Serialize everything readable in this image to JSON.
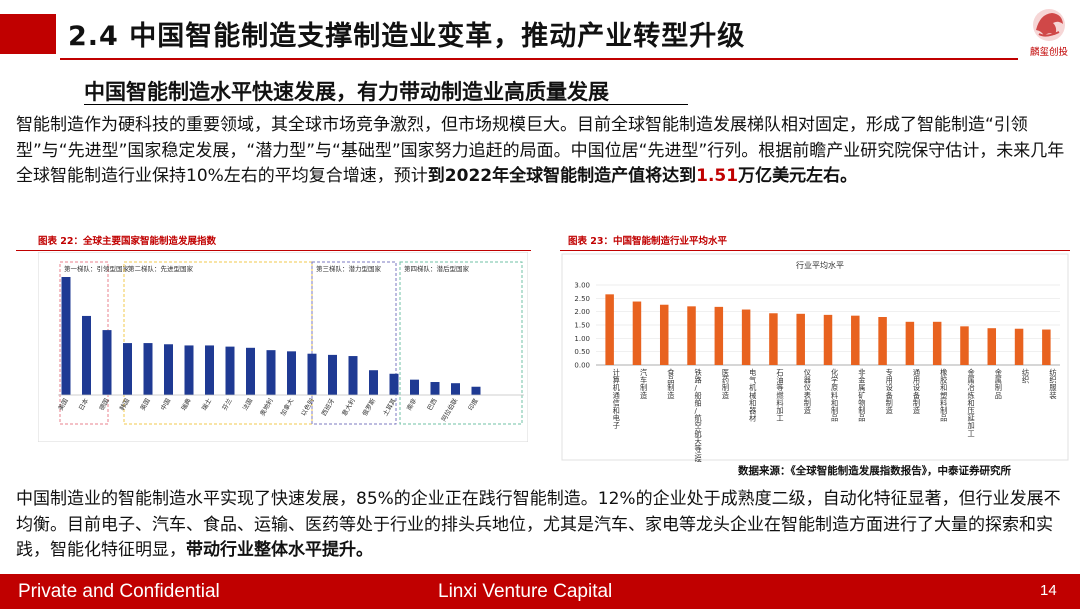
{
  "header": {
    "title": "2.4 中国智能制造支撑制造业变革，推动产业转型升级",
    "logo_text": "麟玺创投"
  },
  "subtitle": "中国智能制造水平快速发展，有力带动制造业高质量发展",
  "paragraph1": {
    "text": "智能制造作为硬科技的重要领域，其全球市场竞争激烈，但市场规模巨大。目前全球智能制造发展梯队相对固定，形成了智能制造“引领型”与“先进型”国家稳定发展，“潜力型”与“基础型”国家努力追赶的局面。中国位居“先进型”行列。根据前瞻产业研究院保守估计，未来几年全球智能制造行业保持10%左右的平均复合增速，预计",
    "bold_text": "到2022年全球智能制造产值将达到",
    "highlight": "1.51",
    "bold_tail": "万亿美元左右。"
  },
  "figure22": {
    "title": "图表 22：全球主要国家智能制造发展指数",
    "chart_data": {
      "type": "bar",
      "groups": [
        {
          "label": "第一梯队：引领型国家",
          "color": "#e8828c",
          "categories": [
            "美国",
            "日本",
            "德国"
          ]
        },
        {
          "label": "第二梯队：先进型国家",
          "color": "#f2c94c",
          "categories": [
            "韩国",
            "英国",
            "中国",
            "瑞典",
            "瑞士",
            "芬兰",
            "法国",
            "奥地利",
            "加拿大"
          ]
        },
        {
          "label": "第三梯队：潜力型国家",
          "color": "#7b79c2",
          "categories": [
            "以色列",
            "西班牙",
            "意大利"
          ]
        },
        {
          "label": "第四梯队：潜后型国家",
          "color": "#6fc2a4",
          "categories": [
            "俄罗斯",
            "土耳其",
            "南非",
            "巴西",
            "阿拉伯联",
            "印度"
          ]
        }
      ],
      "categories": [
        "美国",
        "日本",
        "德国",
        "韩国",
        "英国",
        "中国",
        "瑞典",
        "瑞士",
        "芬兰",
        "法国",
        "奥地利",
        "加拿大",
        "以色列",
        "西班牙",
        "意大利",
        "俄罗斯",
        "土耳其",
        "南非",
        "巴西",
        "阿拉伯联",
        "印度"
      ],
      "values": [
        100,
        67,
        55,
        44,
        44,
        43,
        42,
        42,
        41,
        40,
        38,
        37,
        35,
        34,
        33,
        21,
        18,
        13,
        11,
        10,
        7
      ],
      "bar_color": "#1f3a93"
    }
  },
  "figure23": {
    "title": "图表 23：中国智能制造行业平均水平",
    "chart_data": {
      "type": "bar",
      "title": "行业平均水平",
      "ylim": [
        0,
        3.0
      ],
      "yticks": [
        "0.00",
        "0.50",
        "1.00",
        "1.50",
        "2.00",
        "2.50",
        "3.00"
      ],
      "categories": [
        "计算机通信和电子",
        "汽车制造",
        "食品制造",
        "铁路/船舶/航空航天等运输设备",
        "医药制造",
        "电气机械和器材",
        "石油等燃料加工",
        "仪器仪表制造",
        "化学原料和制品",
        "非金属矿物制品",
        "专用设备制造",
        "通用设备制造",
        "橡胶和塑料制品",
        "金属冶炼和压延加工",
        "金属制品",
        "纺织",
        "纺织服装"
      ],
      "values": [
        2.65,
        2.38,
        2.26,
        2.2,
        2.18,
        2.08,
        1.94,
        1.92,
        1.88,
        1.85,
        1.8,
        1.62,
        1.62,
        1.45,
        1.38,
        1.36,
        1.33
      ],
      "bar_color": "#e8621f"
    }
  },
  "source": "数据来源：《全球智能制造发展指数报告》，中泰证券研究所",
  "paragraph2": {
    "text": "中国制造业的智能制造水平实现了快速发展，85%的企业正在践行智能制造。12%的企业处于成熟度二级，自动化特征显著，但行业发展不均衡。目前电子、汽车、食品、运输、医药等处于行业的排头兵地位，尤其是汽车、家电等龙头企业在智能制造方面进行了大量的探索和实践，智能化特征明显，",
    "bold_text": "带动行业整体水平提升。"
  },
  "footer": {
    "left": "Private and Confidential",
    "center": "Linxi Venture Capital",
    "page": "14"
  }
}
